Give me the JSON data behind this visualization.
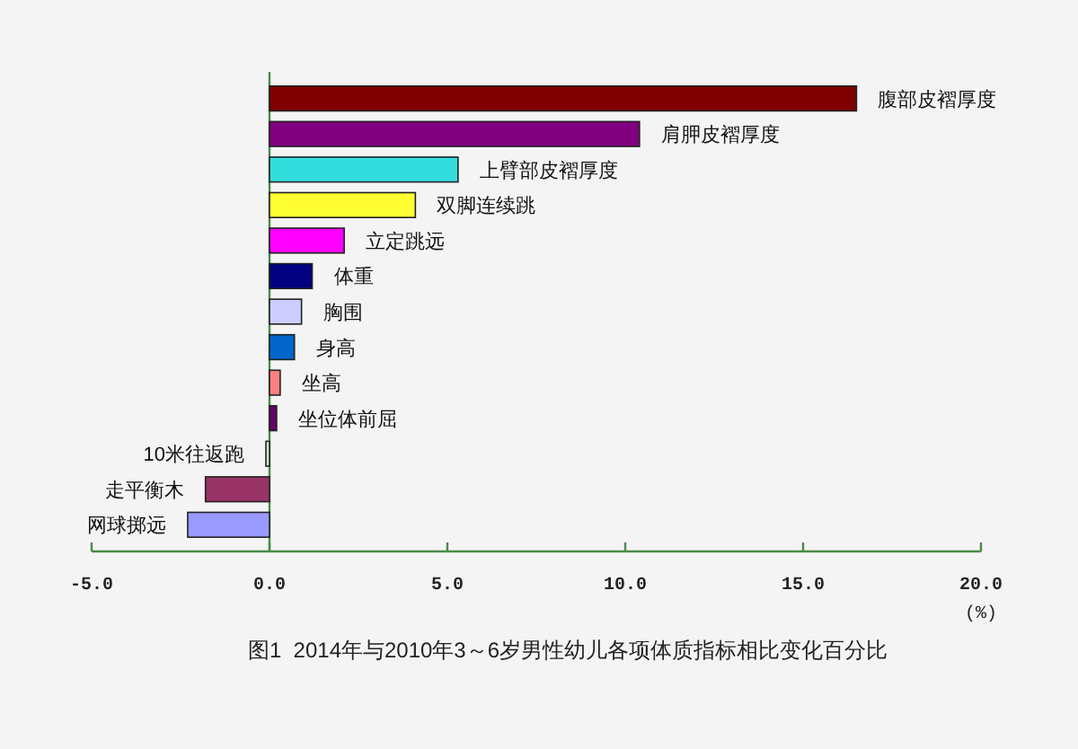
{
  "chart_data": {
    "type": "bar",
    "orientation": "horizontal",
    "title": "图1  2014年与2010年3～6岁男性幼儿各项体质指标相比变化百分比",
    "xlabel": "(%)",
    "categories": [
      "腹部皮褶厚度",
      "肩胛皮褶厚度",
      "上臂部皮褶厚度",
      "双脚连续跳",
      "立定跳远",
      "体重",
      "胸围",
      "身高",
      "坐高",
      "坐位体前屈",
      "10米往返跑",
      "走平衡木",
      "网球掷远"
    ],
    "values": [
      16.5,
      10.4,
      5.3,
      4.1,
      2.1,
      1.2,
      0.9,
      0.7,
      0.3,
      0.2,
      -0.1,
      -1.8,
      -2.3
    ],
    "colors": [
      "#800000",
      "#800080",
      "#33dddd",
      "#ffff33",
      "#ff00ff",
      "#000080",
      "#ccccff",
      "#0066cc",
      "#ff8080",
      "#660066",
      "#ccffcc",
      "#993366",
      "#9999ff"
    ],
    "xlim": [
      -5,
      20
    ],
    "xticks": [
      {
        "value": -5,
        "label": "-5.0"
      },
      {
        "value": 0,
        "label": "0.0"
      },
      {
        "value": 5,
        "label": "5.0"
      },
      {
        "value": 10,
        "label": "10.0"
      },
      {
        "value": 15,
        "label": "15.0"
      },
      {
        "value": 20,
        "label": "20.0"
      }
    ]
  }
}
